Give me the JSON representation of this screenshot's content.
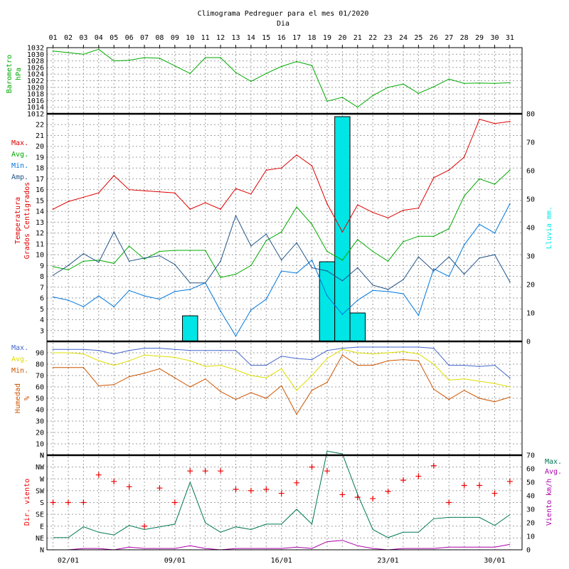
{
  "title": "Climograma Pedreguer para el mes 01/2020",
  "xlabel_top": "Dia",
  "days": [
    "01",
    "02",
    "03",
    "04",
    "05",
    "06",
    "07",
    "08",
    "09",
    "10",
    "11",
    "12",
    "13",
    "14",
    "15",
    "16",
    "17",
    "18",
    "19",
    "20",
    "21",
    "22",
    "23",
    "24",
    "25",
    "26",
    "27",
    "28",
    "29",
    "30",
    "31"
  ],
  "date_ticks": [
    {
      "day": 2,
      "label": "02/01"
    },
    {
      "day": 9,
      "label": "09/01"
    },
    {
      "day": 16,
      "label": "16/01"
    },
    {
      "day": 23,
      "label": "23/01"
    },
    {
      "day": 30,
      "label": "30/01"
    }
  ],
  "colors": {
    "grid": "#a0a0a0",
    "pressure": "#00aa00",
    "temp_max": "#dd0000",
    "temp_avg": "#00aa00",
    "temp_min": "#0077dd",
    "temp_amp": "#225588",
    "rain": "#00e5e5",
    "hum_max": "#4466cc",
    "hum_avg": "#dddd00",
    "hum_min": "#cc5500",
    "wind_dir": "#ee0000",
    "wind_max": "#007755",
    "wind_avg": "#aa00aa"
  },
  "chart_data": [
    {
      "type": "line",
      "id": "pressure",
      "ylabel": [
        "Barometro",
        "hPa"
      ],
      "ylim": [
        1012,
        1032
      ],
      "yticks": [
        1012,
        1014,
        1016,
        1018,
        1020,
        1022,
        1024,
        1026,
        1028,
        1030,
        1032
      ],
      "series": [
        {
          "name": "",
          "values": [
            1031,
            1030.5,
            1030,
            1031.5,
            1028,
            1028.2,
            1029,
            1028.8,
            1026.5,
            1024.2,
            1029,
            1029,
            1024.5,
            1021.8,
            1024.2,
            1026.3,
            1027.8,
            1026.6,
            1015.8,
            1017,
            1014,
            1017.5,
            1020,
            1021,
            1018.2,
            1020.2,
            1022.5,
            1021.2,
            1021.3,
            1021.2,
            1021.4
          ]
        }
      ]
    },
    {
      "type": "line",
      "id": "temperature",
      "ylabel": [
        "Temperatura",
        "Grados Centigrados"
      ],
      "ylim": [
        2,
        23
      ],
      "yticks": [
        3,
        4,
        5,
        6,
        7,
        8,
        9,
        10,
        11,
        12,
        13,
        14,
        15,
        16,
        17,
        18,
        19,
        20,
        21,
        22
      ],
      "y2label": "Lluvia mm.",
      "y2lim": [
        0,
        80
      ],
      "y2ticks": [
        0,
        10,
        20,
        30,
        40,
        50,
        60,
        70,
        80
      ],
      "legend": [
        "Max.",
        "Avg.",
        "Min.",
        "Amp."
      ],
      "series": [
        {
          "name": "Max.",
          "values": [
            14.2,
            14.9,
            15.3,
            15.7,
            17.3,
            16.0,
            15.9,
            15.8,
            15.7,
            14.2,
            14.8,
            14.2,
            16.1,
            15.6,
            17.8,
            18.0,
            19.2,
            18.2,
            14.7,
            12.1,
            14.6,
            13.9,
            13.4,
            14.1,
            14.3,
            17.1,
            17.8,
            19.0,
            22.5,
            22.1,
            22.3
          ]
        },
        {
          "name": "Avg.",
          "values": [
            8.9,
            8.6,
            9.4,
            9.5,
            9.2,
            10.8,
            9.6,
            10.3,
            10.4,
            10.4,
            10.4,
            7.9,
            8.2,
            9.0,
            11.3,
            12.1,
            14.4,
            12.8,
            10.3,
            9.5,
            11.4,
            10.3,
            9.4,
            11.2,
            11.7,
            11.7,
            12.4,
            15.4,
            17.0,
            16.5,
            17.8
          ]
        },
        {
          "name": "Min.",
          "values": [
            6.1,
            5.8,
            5.2,
            6.2,
            5.2,
            6.7,
            6.2,
            5.9,
            6.6,
            6.8,
            7.4,
            4.8,
            2.5,
            4.9,
            5.9,
            8.5,
            8.3,
            9.5,
            6.2,
            4.5,
            5.8,
            6.7,
            6.6,
            6.4,
            4.4,
            8.7,
            8.0,
            10.9,
            12.8,
            12.0,
            14.7
          ]
        },
        {
          "name": "Amp.",
          "values": [
            8.1,
            9.0,
            10.1,
            9.3,
            12.1,
            9.4,
            9.7,
            9.9,
            9.1,
            7.4,
            7.4,
            9.4,
            13.6,
            10.8,
            11.9,
            9.5,
            11.1,
            8.8,
            8.5,
            7.6,
            8.8,
            7.2,
            6.8,
            7.7,
            9.8,
            8.5,
            9.8,
            8.2,
            9.7,
            10.0,
            7.5
          ]
        }
      ],
      "rain": [
        0,
        0,
        0,
        0,
        0,
        0,
        0,
        0,
        0,
        9,
        0,
        0,
        0,
        0,
        0,
        0,
        0,
        0,
        28,
        79,
        10,
        0,
        0,
        0,
        0,
        0,
        0,
        0,
        0,
        0,
        0
      ]
    },
    {
      "type": "line",
      "id": "humidity",
      "ylabel": [
        "Humedad",
        "%"
      ],
      "ylim": [
        0,
        100
      ],
      "yticks": [
        10,
        20,
        30,
        40,
        50,
        60,
        70,
        80,
        90
      ],
      "top_tick": "N",
      "legend": [
        "Max.",
        "Avg.",
        "Min."
      ],
      "series": [
        {
          "name": "Max.",
          "values": [
            93,
            93,
            93,
            92,
            89,
            92,
            94,
            94,
            93,
            92,
            92,
            92,
            92,
            79,
            79,
            87,
            85,
            84,
            92,
            94,
            95,
            95,
            95,
            95,
            95,
            94,
            79,
            79,
            78,
            79,
            68
          ]
        },
        {
          "name": "Avg.",
          "values": [
            90,
            90,
            89,
            83,
            79,
            83,
            88,
            87,
            86,
            83,
            78,
            79,
            75,
            70,
            68,
            76,
            57,
            70,
            85,
            93,
            90,
            89,
            90,
            91,
            89,
            80,
            66,
            67,
            65,
            63,
            60
          ]
        },
        {
          "name": "Min.",
          "values": [
            77,
            77,
            77,
            61,
            62,
            69,
            72,
            76,
            68,
            60,
            67,
            56,
            49,
            55,
            50,
            61,
            36,
            57,
            64,
            88,
            79,
            79,
            83,
            84,
            83,
            58,
            49,
            57,
            50,
            47,
            51
          ]
        }
      ]
    },
    {
      "type": "scatter",
      "id": "wind",
      "ylabel": "Dir. viento",
      "ycategories": [
        "N",
        "NE",
        "E",
        "SE",
        "S",
        "SW",
        "W",
        "NW"
      ],
      "y2label": "Viento km/h",
      "y2lim": [
        0,
        70
      ],
      "y2ticks": [
        0,
        10,
        20,
        30,
        40,
        50,
        60,
        70
      ],
      "legend": [
        "Max.",
        "Avg."
      ],
      "direction_deg": [
        180,
        180,
        180,
        285,
        260,
        240,
        90,
        235,
        180,
        300,
        300,
        300,
        230,
        225,
        230,
        215,
        255,
        315,
        300,
        210,
        200,
        195,
        222,
        265,
        280,
        320,
        180,
        245,
        245,
        215,
        260
      ],
      "series": [
        {
          "name": "Max.",
          "values": [
            9,
            9,
            17,
            13,
            11,
            18,
            15,
            17,
            19,
            50,
            20,
            13,
            17,
            15,
            19,
            19,
            30,
            19,
            73,
            71,
            41,
            15,
            9,
            13,
            13,
            23,
            24,
            24,
            24,
            18,
            26
          ]
        },
        {
          "name": "Avg.",
          "values": [
            0,
            0,
            1,
            1,
            0,
            2,
            1,
            1,
            1,
            3,
            1,
            0,
            1,
            1,
            1,
            1,
            2,
            1,
            6,
            7,
            3,
            1,
            0,
            1,
            1,
            1,
            2,
            2,
            2,
            2,
            4
          ]
        }
      ]
    }
  ]
}
